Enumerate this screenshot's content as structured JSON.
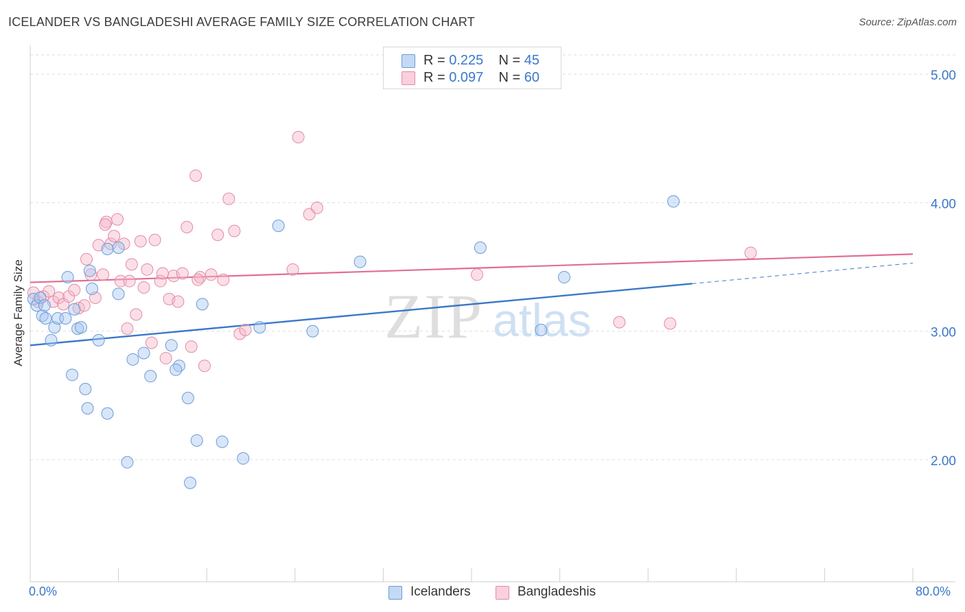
{
  "title": "ICELANDER VS BANGLADESHI AVERAGE FAMILY SIZE CORRELATION CHART",
  "source": "Source: ZipAtlas.com",
  "watermark": {
    "zip": "ZIP",
    "atlas": "atlas"
  },
  "legend": {
    "rows": [
      {
        "r_label": "R =",
        "r_value": "0.225",
        "n_label": "N =",
        "n_value": "45"
      },
      {
        "r_label": "R =",
        "r_value": "0.097",
        "n_label": "N =",
        "n_value": "60"
      }
    ]
  },
  "bottom_legend": {
    "icelanders": "Icelanders",
    "bangladeshis": "Bangladeshis"
  },
  "axis": {
    "x_min_label": "0.0%",
    "x_max_label": "80.0%",
    "ylabel": "Average Family Size"
  },
  "colors": {
    "blue_fill": "#a9c8f0",
    "blue_stroke": "#6a9bd8",
    "blue_line": "#3a78c9",
    "pink_fill": "#f5b9c9",
    "pink_stroke": "#e48aa5",
    "pink_line": "#e16d94",
    "tick_label": "#3a78c9",
    "grid": "#dddddd"
  },
  "chart_data": {
    "type": "scatter",
    "title": "ICELANDER VS BANGLADESHI AVERAGE FAMILY SIZE CORRELATION CHART",
    "xlabel": "",
    "ylabel": "Average Family Size",
    "xlim": [
      0,
      80
    ],
    "ylim": [
      1.05,
      5.15
    ],
    "yticks": [
      {
        "value": 2.0,
        "label": "2.00"
      },
      {
        "value": 3.0,
        "label": "3.00"
      },
      {
        "value": 4.0,
        "label": "4.00"
      },
      {
        "value": 5.0,
        "label": "5.00"
      }
    ],
    "series": [
      {
        "name": "Icelanders",
        "r": 0.225,
        "n": 45,
        "trend": {
          "x0": 0,
          "y0": 2.89,
          "x1": 60,
          "y1": 3.37,
          "dash_to_x": 80,
          "dash_to_y": 3.53
        },
        "points": [
          [
            0.3,
            3.25
          ],
          [
            0.6,
            3.2
          ],
          [
            0.9,
            3.26
          ],
          [
            1.1,
            3.12
          ],
          [
            1.4,
            3.1
          ],
          [
            1.3,
            3.2
          ],
          [
            1.9,
            2.93
          ],
          [
            2.2,
            3.03
          ],
          [
            2.5,
            3.1
          ],
          [
            3.2,
            3.1
          ],
          [
            3.4,
            3.42
          ],
          [
            3.8,
            2.66
          ],
          [
            4.0,
            3.17
          ],
          [
            4.3,
            3.02
          ],
          [
            4.6,
            3.03
          ],
          [
            5.0,
            2.55
          ],
          [
            5.2,
            2.4
          ],
          [
            5.4,
            3.47
          ],
          [
            5.6,
            3.33
          ],
          [
            6.2,
            2.93
          ],
          [
            7.0,
            2.36
          ],
          [
            7.0,
            3.64
          ],
          [
            8.0,
            3.65
          ],
          [
            8.0,
            3.29
          ],
          [
            8.8,
            1.98
          ],
          [
            9.3,
            2.78
          ],
          [
            10.3,
            2.83
          ],
          [
            10.9,
            2.65
          ],
          [
            12.8,
            2.89
          ],
          [
            13.5,
            2.73
          ],
          [
            14.3,
            2.48
          ],
          [
            14.5,
            1.82
          ],
          [
            15.6,
            3.21
          ],
          [
            15.1,
            2.15
          ],
          [
            17.4,
            2.14
          ],
          [
            19.3,
            2.01
          ],
          [
            20.8,
            3.03
          ],
          [
            22.5,
            3.82
          ],
          [
            25.6,
            3.0
          ],
          [
            29.9,
            3.54
          ],
          [
            40.8,
            3.65
          ],
          [
            46.3,
            3.01
          ],
          [
            48.4,
            3.42
          ],
          [
            58.3,
            4.01
          ],
          [
            13.2,
            2.7
          ]
        ]
      },
      {
        "name": "Bangladeshis",
        "r": 0.097,
        "n": 60,
        "trend": {
          "x0": 0,
          "y0": 3.38,
          "x1": 80,
          "y1": 3.6
        },
        "points": [
          [
            0.3,
            3.3
          ],
          [
            0.7,
            3.23
          ],
          [
            1.2,
            3.27
          ],
          [
            1.7,
            3.31
          ],
          [
            2.1,
            3.23
          ],
          [
            2.6,
            3.26
          ],
          [
            3.0,
            3.21
          ],
          [
            3.5,
            3.27
          ],
          [
            4.0,
            3.32
          ],
          [
            4.4,
            3.18
          ],
          [
            4.9,
            3.2
          ],
          [
            5.1,
            3.56
          ],
          [
            5.5,
            3.44
          ],
          [
            5.9,
            3.26
          ],
          [
            6.2,
            3.67
          ],
          [
            6.6,
            3.44
          ],
          [
            6.9,
            3.85
          ],
          [
            7.3,
            3.68
          ],
          [
            7.6,
            3.74
          ],
          [
            7.9,
            3.87
          ],
          [
            8.2,
            3.39
          ],
          [
            8.5,
            3.68
          ],
          [
            8.8,
            3.02
          ],
          [
            9.2,
            3.52
          ],
          [
            9.6,
            3.13
          ],
          [
            10.0,
            3.7
          ],
          [
            10.3,
            3.34
          ],
          [
            10.6,
            3.48
          ],
          [
            11.0,
            2.91
          ],
          [
            11.3,
            3.71
          ],
          [
            11.8,
            3.39
          ],
          [
            12.3,
            2.79
          ],
          [
            12.6,
            3.25
          ],
          [
            13.0,
            3.43
          ],
          [
            13.4,
            3.23
          ],
          [
            13.8,
            3.45
          ],
          [
            14.2,
            3.81
          ],
          [
            14.6,
            2.88
          ],
          [
            15.0,
            4.21
          ],
          [
            15.4,
            3.42
          ],
          [
            15.8,
            2.73
          ],
          [
            16.4,
            3.44
          ],
          [
            17.0,
            3.75
          ],
          [
            17.5,
            3.4
          ],
          [
            18.0,
            4.03
          ],
          [
            18.5,
            3.78
          ],
          [
            19.0,
            2.98
          ],
          [
            19.5,
            3.01
          ],
          [
            23.8,
            3.48
          ],
          [
            24.3,
            4.51
          ],
          [
            25.3,
            3.91
          ],
          [
            26.0,
            3.96
          ],
          [
            40.5,
            3.44
          ],
          [
            53.4,
            3.07
          ],
          [
            58.0,
            3.06
          ],
          [
            65.3,
            3.61
          ],
          [
            15.2,
            3.4
          ],
          [
            6.8,
            3.83
          ],
          [
            9.0,
            3.39
          ],
          [
            12.0,
            3.45
          ]
        ]
      }
    ]
  }
}
